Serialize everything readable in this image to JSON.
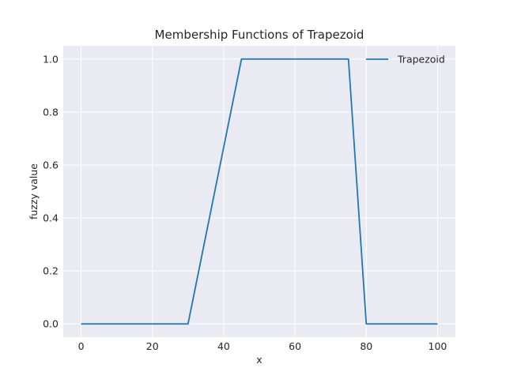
{
  "chart_data": {
    "type": "line",
    "title": "Membership Functions of Trapezoid",
    "xlabel": "x",
    "ylabel": "fuzzy value",
    "xlim": [
      -5,
      105
    ],
    "ylim": [
      -0.05,
      1.05
    ],
    "xticks": [
      0,
      20,
      40,
      60,
      80,
      100
    ],
    "xtick_labels": [
      "0",
      "20",
      "40",
      "60",
      "80",
      "100"
    ],
    "yticks": [
      0.0,
      0.2,
      0.4,
      0.6,
      0.8,
      1.0
    ],
    "ytick_labels": [
      "0.0",
      "0.2",
      "0.4",
      "0.6",
      "0.8",
      "1.0"
    ],
    "grid": true,
    "legend_position": "top-right",
    "series": [
      {
        "name": "Trapezoid",
        "color": "#1f77b4",
        "x": [
          0,
          30,
          45,
          75,
          80,
          100
        ],
        "y": [
          0,
          0,
          1,
          1,
          0,
          0
        ]
      }
    ]
  },
  "colors": {
    "plot_background": "#eaeaf2",
    "grid": "#ffffff",
    "text": "#262626"
  }
}
